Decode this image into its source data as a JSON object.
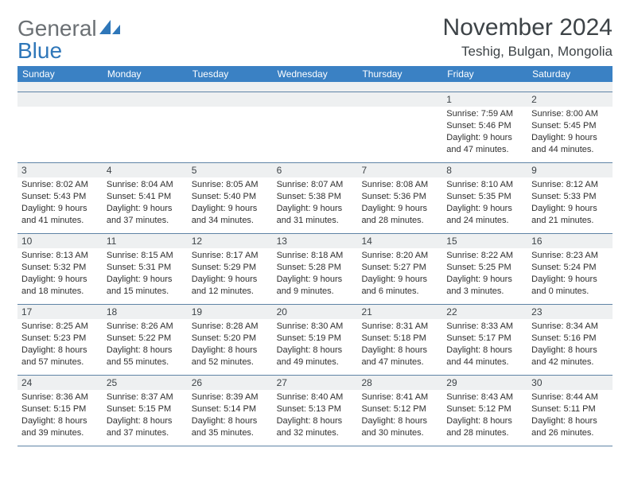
{
  "logo": {
    "part1": "General",
    "part2": "Blue"
  },
  "title": "November 2024",
  "location": "Teshig, Bulgan, Mongolia",
  "weekday_bg": "#3a81c4",
  "daynum_bg": "#eef0f1",
  "border_color": "#5f84a6",
  "weekdays": [
    "Sunday",
    "Monday",
    "Tuesday",
    "Wednesday",
    "Thursday",
    "Friday",
    "Saturday"
  ],
  "weeks": [
    [
      {
        "n": "",
        "sunrise": "",
        "sunset": "",
        "daylight": ""
      },
      {
        "n": "",
        "sunrise": "",
        "sunset": "",
        "daylight": ""
      },
      {
        "n": "",
        "sunrise": "",
        "sunset": "",
        "daylight": ""
      },
      {
        "n": "",
        "sunrise": "",
        "sunset": "",
        "daylight": ""
      },
      {
        "n": "",
        "sunrise": "",
        "sunset": "",
        "daylight": ""
      },
      {
        "n": "1",
        "sunrise": "Sunrise: 7:59 AM",
        "sunset": "Sunset: 5:46 PM",
        "daylight": "Daylight: 9 hours and 47 minutes."
      },
      {
        "n": "2",
        "sunrise": "Sunrise: 8:00 AM",
        "sunset": "Sunset: 5:45 PM",
        "daylight": "Daylight: 9 hours and 44 minutes."
      }
    ],
    [
      {
        "n": "3",
        "sunrise": "Sunrise: 8:02 AM",
        "sunset": "Sunset: 5:43 PM",
        "daylight": "Daylight: 9 hours and 41 minutes."
      },
      {
        "n": "4",
        "sunrise": "Sunrise: 8:04 AM",
        "sunset": "Sunset: 5:41 PM",
        "daylight": "Daylight: 9 hours and 37 minutes."
      },
      {
        "n": "5",
        "sunrise": "Sunrise: 8:05 AM",
        "sunset": "Sunset: 5:40 PM",
        "daylight": "Daylight: 9 hours and 34 minutes."
      },
      {
        "n": "6",
        "sunrise": "Sunrise: 8:07 AM",
        "sunset": "Sunset: 5:38 PM",
        "daylight": "Daylight: 9 hours and 31 minutes."
      },
      {
        "n": "7",
        "sunrise": "Sunrise: 8:08 AM",
        "sunset": "Sunset: 5:36 PM",
        "daylight": "Daylight: 9 hours and 28 minutes."
      },
      {
        "n": "8",
        "sunrise": "Sunrise: 8:10 AM",
        "sunset": "Sunset: 5:35 PM",
        "daylight": "Daylight: 9 hours and 24 minutes."
      },
      {
        "n": "9",
        "sunrise": "Sunrise: 8:12 AM",
        "sunset": "Sunset: 5:33 PM",
        "daylight": "Daylight: 9 hours and 21 minutes."
      }
    ],
    [
      {
        "n": "10",
        "sunrise": "Sunrise: 8:13 AM",
        "sunset": "Sunset: 5:32 PM",
        "daylight": "Daylight: 9 hours and 18 minutes."
      },
      {
        "n": "11",
        "sunrise": "Sunrise: 8:15 AM",
        "sunset": "Sunset: 5:31 PM",
        "daylight": "Daylight: 9 hours and 15 minutes."
      },
      {
        "n": "12",
        "sunrise": "Sunrise: 8:17 AM",
        "sunset": "Sunset: 5:29 PM",
        "daylight": "Daylight: 9 hours and 12 minutes."
      },
      {
        "n": "13",
        "sunrise": "Sunrise: 8:18 AM",
        "sunset": "Sunset: 5:28 PM",
        "daylight": "Daylight: 9 hours and 9 minutes."
      },
      {
        "n": "14",
        "sunrise": "Sunrise: 8:20 AM",
        "sunset": "Sunset: 5:27 PM",
        "daylight": "Daylight: 9 hours and 6 minutes."
      },
      {
        "n": "15",
        "sunrise": "Sunrise: 8:22 AM",
        "sunset": "Sunset: 5:25 PM",
        "daylight": "Daylight: 9 hours and 3 minutes."
      },
      {
        "n": "16",
        "sunrise": "Sunrise: 8:23 AM",
        "sunset": "Sunset: 5:24 PM",
        "daylight": "Daylight: 9 hours and 0 minutes."
      }
    ],
    [
      {
        "n": "17",
        "sunrise": "Sunrise: 8:25 AM",
        "sunset": "Sunset: 5:23 PM",
        "daylight": "Daylight: 8 hours and 57 minutes."
      },
      {
        "n": "18",
        "sunrise": "Sunrise: 8:26 AM",
        "sunset": "Sunset: 5:22 PM",
        "daylight": "Daylight: 8 hours and 55 minutes."
      },
      {
        "n": "19",
        "sunrise": "Sunrise: 8:28 AM",
        "sunset": "Sunset: 5:20 PM",
        "daylight": "Daylight: 8 hours and 52 minutes."
      },
      {
        "n": "20",
        "sunrise": "Sunrise: 8:30 AM",
        "sunset": "Sunset: 5:19 PM",
        "daylight": "Daylight: 8 hours and 49 minutes."
      },
      {
        "n": "21",
        "sunrise": "Sunrise: 8:31 AM",
        "sunset": "Sunset: 5:18 PM",
        "daylight": "Daylight: 8 hours and 47 minutes."
      },
      {
        "n": "22",
        "sunrise": "Sunrise: 8:33 AM",
        "sunset": "Sunset: 5:17 PM",
        "daylight": "Daylight: 8 hours and 44 minutes."
      },
      {
        "n": "23",
        "sunrise": "Sunrise: 8:34 AM",
        "sunset": "Sunset: 5:16 PM",
        "daylight": "Daylight: 8 hours and 42 minutes."
      }
    ],
    [
      {
        "n": "24",
        "sunrise": "Sunrise: 8:36 AM",
        "sunset": "Sunset: 5:15 PM",
        "daylight": "Daylight: 8 hours and 39 minutes."
      },
      {
        "n": "25",
        "sunrise": "Sunrise: 8:37 AM",
        "sunset": "Sunset: 5:15 PM",
        "daylight": "Daylight: 8 hours and 37 minutes."
      },
      {
        "n": "26",
        "sunrise": "Sunrise: 8:39 AM",
        "sunset": "Sunset: 5:14 PM",
        "daylight": "Daylight: 8 hours and 35 minutes."
      },
      {
        "n": "27",
        "sunrise": "Sunrise: 8:40 AM",
        "sunset": "Sunset: 5:13 PM",
        "daylight": "Daylight: 8 hours and 32 minutes."
      },
      {
        "n": "28",
        "sunrise": "Sunrise: 8:41 AM",
        "sunset": "Sunset: 5:12 PM",
        "daylight": "Daylight: 8 hours and 30 minutes."
      },
      {
        "n": "29",
        "sunrise": "Sunrise: 8:43 AM",
        "sunset": "Sunset: 5:12 PM",
        "daylight": "Daylight: 8 hours and 28 minutes."
      },
      {
        "n": "30",
        "sunrise": "Sunrise: 8:44 AM",
        "sunset": "Sunset: 5:11 PM",
        "daylight": "Daylight: 8 hours and 26 minutes."
      }
    ]
  ]
}
